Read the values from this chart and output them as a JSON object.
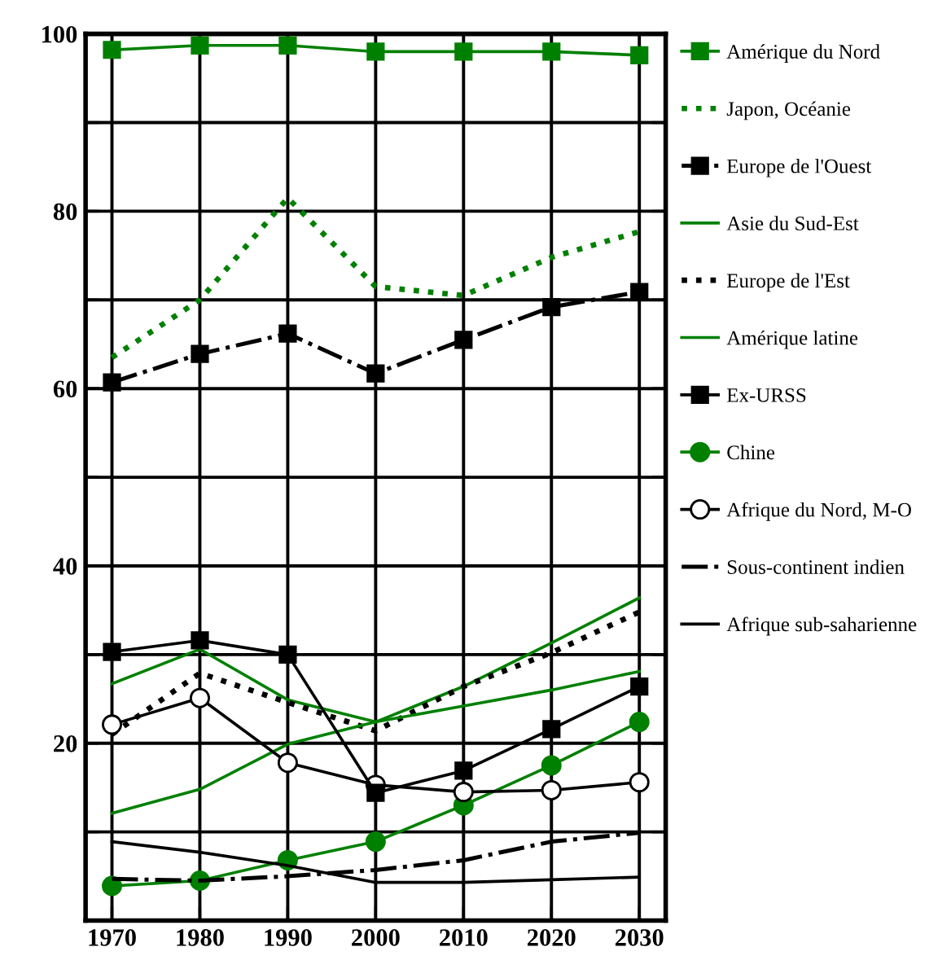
{
  "chart_data": {
    "type": "line",
    "x": [
      1970,
      1980,
      1990,
      2000,
      2010,
      2020,
      2030
    ],
    "xlim": [
      1967,
      2033
    ],
    "xticks": [
      1970,
      1980,
      1990,
      2000,
      2010,
      2020,
      2030
    ],
    "ylim": [
      0,
      100
    ],
    "yticks": [
      {
        "value": 10,
        "label": null
      },
      20,
      {
        "value": 30,
        "label": null
      },
      40,
      {
        "value": 50,
        "label": null
      },
      60,
      {
        "value": 70,
        "label": null
      },
      80,
      {
        "value": 90,
        "label": null
      },
      100
    ],
    "grid": true,
    "legend": "right",
    "series": [
      {
        "name": "Amérique du Nord",
        "color": "#008000",
        "marker": "square",
        "line_style": "solid",
        "values": [
          98.2,
          98.7,
          98.7,
          98.0,
          98.0,
          98.0,
          97.6
        ]
      },
      {
        "name": "Japon, Océanie",
        "color": "#008000",
        "marker": "none",
        "line_style": "dotted",
        "values": [
          63.5,
          70.0,
          81.5,
          71.5,
          70.5,
          74.8,
          77.7
        ]
      },
      {
        "name": "Europe de l'Ouest",
        "color": "#000000",
        "marker": "square",
        "line_style": "dashdot",
        "values": [
          60.7,
          63.9,
          66.2,
          61.7,
          65.5,
          69.2,
          70.9
        ]
      },
      {
        "name": "Asie du Sud-Est",
        "color": "#008000",
        "marker": "none",
        "line_style": "solid",
        "values": [
          26.7,
          30.6,
          24.9,
          22.4,
          26.4,
          31.3,
          36.4
        ]
      },
      {
        "name": "Europe de l'Est",
        "color": "#000000",
        "marker": "none",
        "line_style": "dotted",
        "values": [
          21.0,
          27.9,
          24.6,
          21.4,
          26.4,
          30.2,
          34.8
        ]
      },
      {
        "name": "Amérique latine",
        "color": "#008000",
        "marker": "none",
        "line_style": "solid",
        "values": [
          12.1,
          14.8,
          19.9,
          22.4,
          24.2,
          26.0,
          28.1
        ]
      },
      {
        "name": "Ex-URSS",
        "color": "#000000",
        "marker": "square",
        "line_style": "solid",
        "values": [
          30.3,
          31.6,
          30.0,
          14.4,
          16.9,
          21.6,
          26.4
        ]
      },
      {
        "name": "Chine",
        "color": "#008000",
        "marker": "circle",
        "line_style": "solid",
        "values": [
          3.9,
          4.5,
          6.8,
          8.9,
          13.0,
          17.5,
          22.4
        ]
      },
      {
        "name": "Afrique du Nord, M-O",
        "color": "#000000",
        "marker": "open circle",
        "line_style": "solid",
        "values": [
          22.1,
          25.1,
          17.8,
          15.3,
          14.5,
          14.7,
          15.6
        ]
      },
      {
        "name": "Sous-continent indien",
        "color": "#000000",
        "marker": "none",
        "line_style": "dashdot",
        "values": [
          4.7,
          4.5,
          5.0,
          5.7,
          6.8,
          8.9,
          9.9
        ]
      },
      {
        "name": "Afrique sub-saharienne",
        "color": "#000000",
        "marker": "none",
        "line_style": "solid",
        "values": [
          8.9,
          7.7,
          6.2,
          4.3,
          4.3,
          4.6,
          4.9
        ]
      }
    ]
  }
}
